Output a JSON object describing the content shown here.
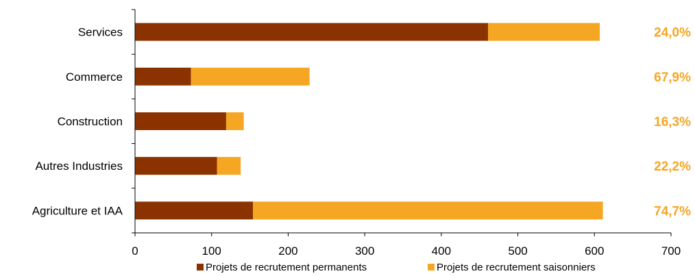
{
  "chart_data": {
    "type": "bar",
    "orientation": "horizontal",
    "stacked": true,
    "categories": [
      "Services",
      "Commerce",
      "Construction",
      "Autres Industries",
      "Agriculture et IAA"
    ],
    "series": [
      {
        "name": "Projets de recrutement permanents",
        "values": [
          461,
          73,
          119,
          107,
          154
        ],
        "color": "#8B3300"
      },
      {
        "name": "Projets de recrutement saisonniers",
        "values": [
          146,
          155,
          23,
          31,
          457
        ],
        "color": "#F5A623"
      }
    ],
    "share_labels": [
      "24,0%",
      "67,9%",
      "16,3%",
      "22,2%",
      "74,7%"
    ],
    "share_label_color": "#F5A623",
    "xlim": [
      0,
      700
    ],
    "xticks": [
      "0",
      "100",
      "200",
      "300",
      "400",
      "500",
      "600",
      "700"
    ],
    "grid": false,
    "legend_position": "bottom"
  }
}
